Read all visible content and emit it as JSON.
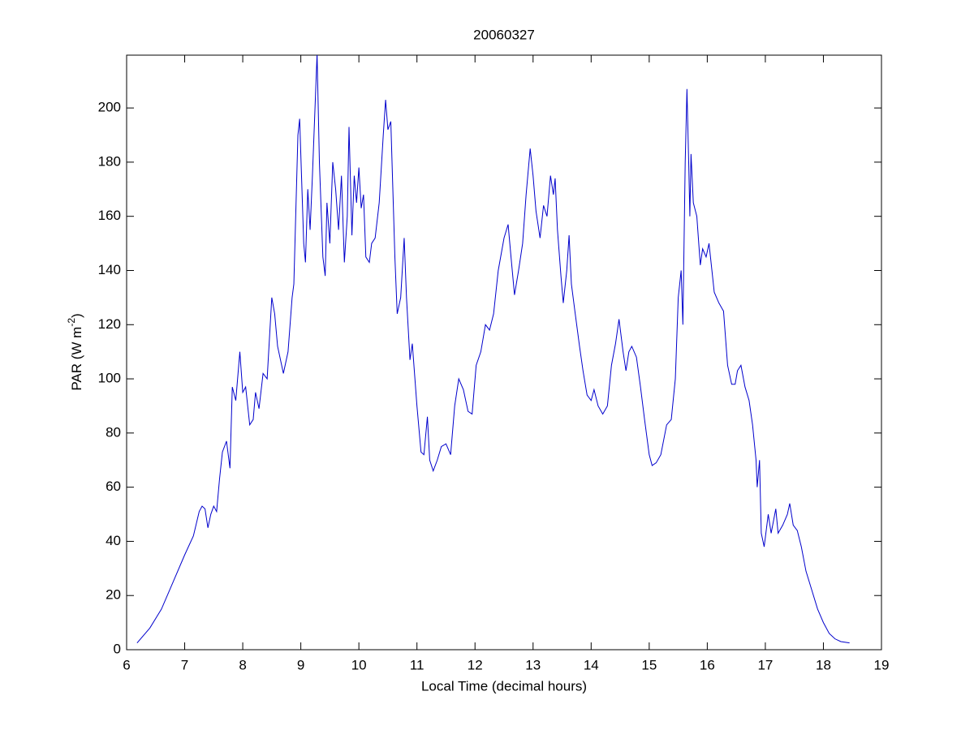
{
  "chart_data": {
    "type": "line",
    "title": "20060327",
    "xlabel": "Local Time (decimal hours)",
    "ylabel": [
      "PAR (W m",
      "-2",
      ")"
    ],
    "xlim": [
      6,
      19
    ],
    "ylim": [
      0,
      219.5
    ],
    "xticks": [
      6,
      7,
      8,
      9,
      10,
      11,
      12,
      13,
      14,
      15,
      16,
      17,
      18,
      19
    ],
    "yticks": [
      0,
      20,
      40,
      60,
      80,
      100,
      120,
      140,
      160,
      180,
      200
    ],
    "grid": false,
    "x": [
      6.18,
      6.4,
      6.6,
      6.8,
      7.0,
      7.15,
      7.25,
      7.3,
      7.35,
      7.4,
      7.45,
      7.5,
      7.55,
      7.6,
      7.65,
      7.72,
      7.78,
      7.82,
      7.88,
      7.95,
      8.0,
      8.05,
      8.12,
      8.18,
      8.22,
      8.28,
      8.35,
      8.42,
      8.5,
      8.55,
      8.6,
      8.7,
      8.78,
      8.85,
      8.88,
      8.95,
      8.98,
      9.05,
      9.08,
      9.12,
      9.16,
      9.2,
      9.28,
      9.32,
      9.38,
      9.42,
      9.45,
      9.5,
      9.55,
      9.6,
      9.65,
      9.7,
      9.75,
      9.8,
      9.83,
      9.88,
      9.92,
      9.96,
      10.0,
      10.04,
      10.08,
      10.12,
      10.18,
      10.22,
      10.28,
      10.35,
      10.42,
      10.46,
      10.5,
      10.55,
      10.62,
      10.66,
      10.72,
      10.78,
      10.82,
      10.88,
      10.92,
      11.0,
      11.07,
      11.12,
      11.18,
      11.22,
      11.28,
      11.35,
      11.42,
      11.5,
      11.58,
      11.65,
      11.72,
      11.8,
      11.88,
      11.95,
      12.02,
      12.1,
      12.18,
      12.25,
      12.32,
      12.4,
      12.5,
      12.57,
      12.62,
      12.68,
      12.75,
      12.82,
      12.88,
      12.95,
      13.0,
      13.05,
      13.12,
      13.18,
      13.24,
      13.3,
      13.35,
      13.38,
      13.42,
      13.48,
      13.52,
      13.58,
      13.62,
      13.66,
      13.72,
      13.8,
      13.86,
      13.93,
      14.0,
      14.05,
      14.12,
      14.2,
      14.28,
      14.35,
      14.42,
      14.48,
      14.55,
      14.6,
      14.65,
      14.7,
      14.78,
      14.85,
      14.92,
      15.0,
      15.05,
      15.12,
      15.2,
      15.3,
      15.38,
      15.45,
      15.5,
      15.55,
      15.58,
      15.62,
      15.65,
      15.68,
      15.7,
      15.72,
      15.76,
      15.82,
      15.88,
      15.92,
      15.98,
      16.03,
      16.08,
      16.12,
      16.2,
      16.28,
      16.35,
      16.42,
      16.48,
      16.52,
      16.58,
      16.65,
      16.72,
      16.78,
      16.84,
      16.86,
      16.9,
      16.93,
      16.98,
      17.05,
      17.1,
      17.18,
      17.22,
      17.3,
      17.38,
      17.42,
      17.48,
      17.55,
      17.62,
      17.7,
      17.8,
      17.9,
      18.0,
      18.1,
      18.2,
      18.3,
      18.45
    ],
    "series": [
      {
        "color": "#0000cc",
        "values": [
          2.5,
          8,
          15,
          25,
          35,
          42,
          51,
          53,
          52,
          45,
          50,
          53,
          51,
          63,
          73,
          77,
          67,
          97,
          92,
          110,
          95,
          97,
          83,
          85,
          95,
          89,
          102,
          100,
          130,
          124,
          112,
          102,
          110,
          130,
          135,
          190,
          196,
          150,
          143,
          170,
          155,
          175,
          220,
          180,
          145,
          138,
          165,
          150,
          180,
          170,
          155,
          175,
          143,
          160,
          193,
          153,
          175,
          165,
          178,
          163,
          168,
          145,
          143,
          150,
          152,
          165,
          190,
          203,
          192,
          195,
          145,
          124,
          130,
          152,
          130,
          107,
          113,
          90,
          73,
          72,
          86,
          70,
          66,
          70,
          75,
          76,
          72,
          90,
          100,
          96,
          88,
          87,
          105,
          110,
          120,
          118,
          124,
          140,
          152,
          157,
          145,
          131,
          140,
          150,
          168,
          185,
          175,
          162,
          152,
          164,
          160,
          175,
          168,
          174,
          155,
          138,
          128,
          140,
          153,
          135,
          125,
          112,
          103,
          94,
          92,
          96,
          90,
          87,
          90,
          105,
          113,
          122,
          110,
          103,
          110,
          112,
          108,
          97,
          85,
          72,
          68,
          69,
          72,
          83,
          85,
          100,
          130,
          140,
          120,
          180,
          207,
          180,
          160,
          183,
          165,
          160,
          142,
          148,
          145,
          150,
          140,
          132,
          128,
          125,
          105,
          98,
          98,
          103,
          105,
          97,
          92,
          83,
          70,
          60,
          70,
          43,
          38,
          50,
          43,
          52,
          43,
          46,
          50,
          54,
          46,
          44,
          38,
          29,
          22,
          15,
          10,
          6,
          4,
          3,
          2.5
        ]
      }
    ]
  }
}
